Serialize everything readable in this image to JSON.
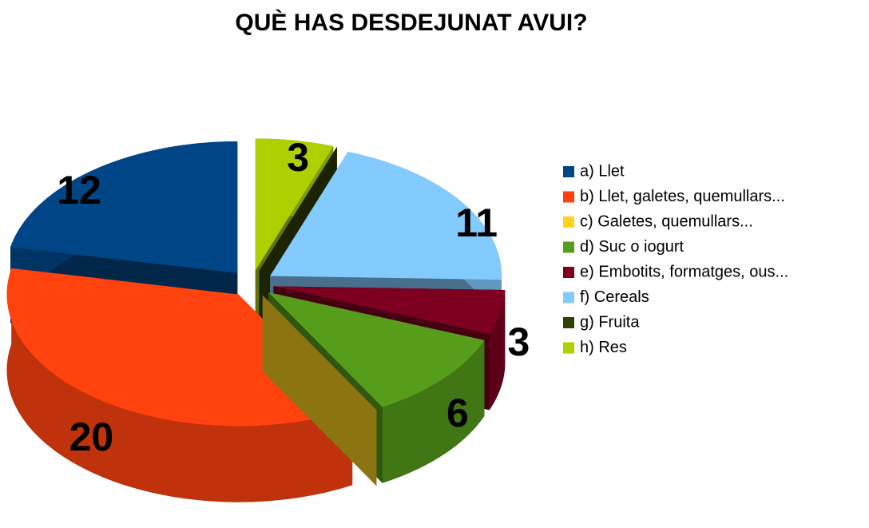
{
  "chart_data": {
    "type": "pie",
    "title": "QUÈ HAS DESDEJUNAT AVUI?",
    "categories": [
      "a) Llet",
      "b) Llet, galetes, quemullars...",
      "c) Galetes, quemullars...",
      "d) Suc o iogurt",
      "e) Embotits, formatges, ous...",
      "f) Cereals",
      "g) Fruita",
      "h) Res"
    ],
    "values": [
      12,
      20,
      0,
      6,
      3,
      11,
      0,
      3
    ],
    "colors": [
      "#004586",
      "#ff420e",
      "#ffd320",
      "#579d1c",
      "#7e0021",
      "#83caff",
      "#314004",
      "#aecf00"
    ],
    "legend": "right"
  }
}
